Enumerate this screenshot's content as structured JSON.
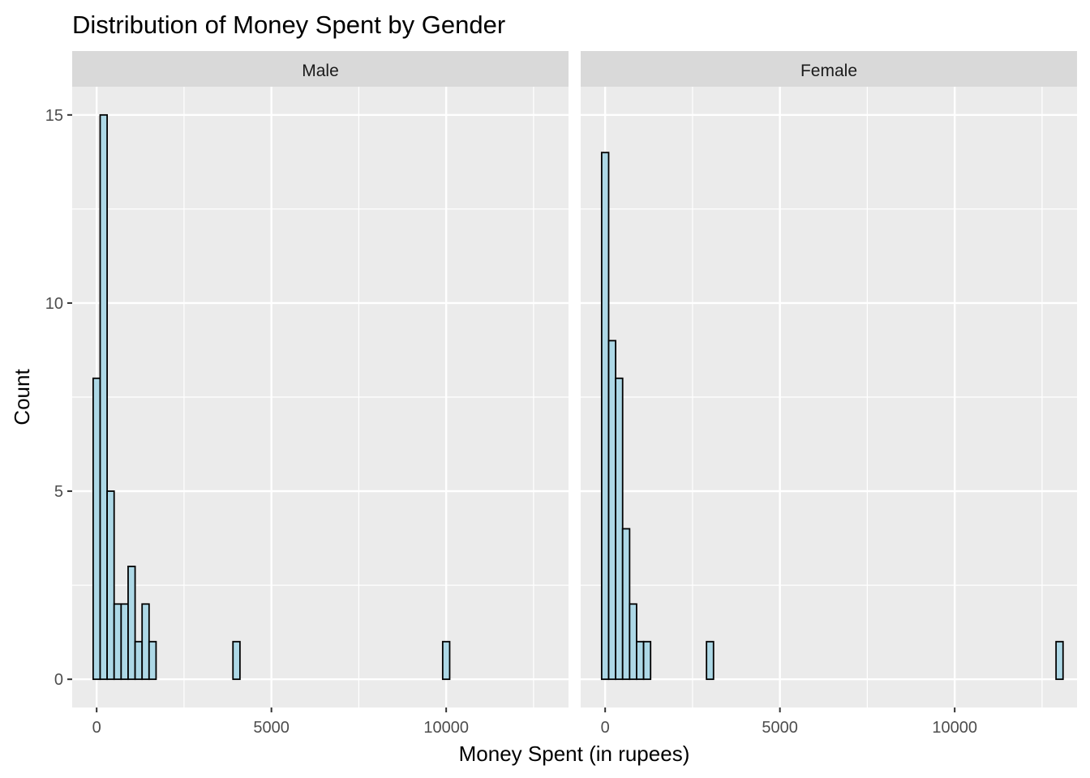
{
  "chart_data": {
    "type": "bar",
    "subtype": "faceted-histogram",
    "title": "Distribution of Money Spent by Gender",
    "xlabel": "Money Spent (in rupees)",
    "ylabel": "Count",
    "xlim": [
      -700,
      13500
    ],
    "ylim": [
      -0.75,
      15.75
    ],
    "x_ticks": [
      0,
      5000,
      10000
    ],
    "y_ticks": [
      0,
      5,
      10,
      15
    ],
    "grid": true,
    "fill_color": "#ADD8E6",
    "outline_color": "#000000",
    "panel_background": "#EBEBEB",
    "strip_background": "#D9D9D9",
    "panels": [
      {
        "label": "Male",
        "bin_width": 200,
        "bin_start": -100,
        "counts": [
          8,
          15,
          5,
          2,
          2,
          3,
          1,
          2,
          1,
          0,
          0,
          0,
          0,
          0,
          0,
          0,
          0,
          0,
          0,
          0,
          1,
          0,
          0,
          0,
          0,
          0,
          0,
          0,
          0,
          0,
          0,
          0,
          0,
          0,
          0,
          0,
          0,
          0,
          0,
          0,
          0,
          0,
          0,
          0,
          0,
          0,
          0,
          0,
          0,
          0,
          1,
          0,
          0,
          0,
          0,
          0,
          0,
          0,
          0,
          0,
          0,
          0,
          0,
          0,
          0,
          0
        ]
      },
      {
        "label": "Female",
        "bin_width": 200,
        "bin_start": -100,
        "counts": [
          14,
          9,
          8,
          4,
          2,
          1,
          1,
          0,
          0,
          0,
          0,
          0,
          0,
          0,
          0,
          1,
          0,
          0,
          0,
          0,
          0,
          0,
          0,
          0,
          0,
          0,
          0,
          0,
          0,
          0,
          0,
          0,
          0,
          0,
          0,
          0,
          0,
          0,
          0,
          0,
          0,
          0,
          0,
          0,
          0,
          0,
          0,
          0,
          0,
          0,
          0,
          0,
          0,
          0,
          0,
          0,
          0,
          0,
          0,
          0,
          0,
          0,
          0,
          0,
          0,
          1
        ]
      }
    ]
  }
}
